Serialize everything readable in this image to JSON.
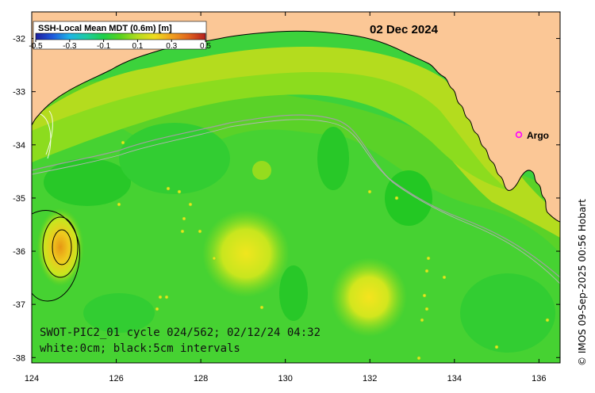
{
  "map": {
    "date": "02 Dec 2024",
    "colorbar": {
      "title": "SSH-Local Mean MDT (0.6m) [m]",
      "tick_labels": [
        "-0.5",
        "-0.3",
        "-0.1",
        "0.1",
        "0.3",
        "0.5"
      ],
      "colors": [
        "#1e1ea0",
        "#1e5adc",
        "#1eb4e6",
        "#1ecca0",
        "#1ed04a",
        "#5ad21e",
        "#b4dc1e",
        "#f0dc1e",
        "#f0a01e",
        "#e0641e",
        "#b41e1e"
      ]
    },
    "x_axis": {
      "ticks": [
        "124",
        "126",
        "128",
        "130",
        "132",
        "134",
        "136"
      ],
      "range": [
        124,
        136.5
      ]
    },
    "y_axis": {
      "ticks": [
        "-32",
        "-33",
        "-34",
        "-35",
        "-36",
        "-37",
        "-38"
      ],
      "range": [
        -38.1,
        -31.5
      ]
    },
    "legend": {
      "argo_label": "Argo",
      "argo_color": "#ff00ff"
    },
    "info_line1": "SWOT-PIC2_01 cycle 024/562; 02/12/24 04:32",
    "info_line2": "white:0cm; black:5cm intervals",
    "credit": "© IMOS 09-Sep-2025 00:56 Hobart",
    "land_color": "#fbc796",
    "ocean_color": "#2ecf2e"
  }
}
